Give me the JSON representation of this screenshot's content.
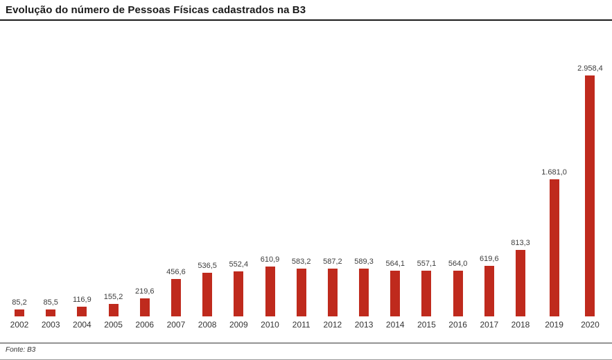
{
  "header": {
    "title": "Evolução do número de Pessoas Físicas cadastrados na B3"
  },
  "footer": {
    "source": "Fonte: B3"
  },
  "chart_data": {
    "type": "bar",
    "title": "Evolução do número de Pessoas Físicas cadastrados na B3",
    "categories": [
      "2002",
      "2003",
      "2004",
      "2005",
      "2006",
      "2007",
      "2008",
      "2009",
      "2010",
      "2011",
      "2012",
      "2013",
      "2014",
      "2015",
      "2016",
      "2017",
      "2018",
      "2019",
      "2020"
    ],
    "values": [
      85.2,
      85.5,
      116.9,
      155.2,
      219.6,
      456.6,
      536.5,
      552.4,
      610.9,
      583.2,
      587.2,
      589.3,
      564.1,
      557.1,
      564.0,
      619.6,
      813.3,
      1681.0,
      2958.4
    ],
    "value_labels": [
      "85,2",
      "85,5",
      "116,9",
      "155,2",
      "219,6",
      "456,6",
      "536,5",
      "552,4",
      "610,9",
      "583,2",
      "587,2",
      "589,3",
      "564,1",
      "557,1",
      "564,0",
      "619,6",
      "813,3",
      "1.681,0",
      "2.958,4"
    ],
    "xlabel": "",
    "ylabel": "",
    "ylim": [
      0,
      3000
    ],
    "y_axis_visible": false,
    "grid": false,
    "legend": "none",
    "bar_color": "#bf2a1d",
    "source": "Fonte: B3"
  }
}
